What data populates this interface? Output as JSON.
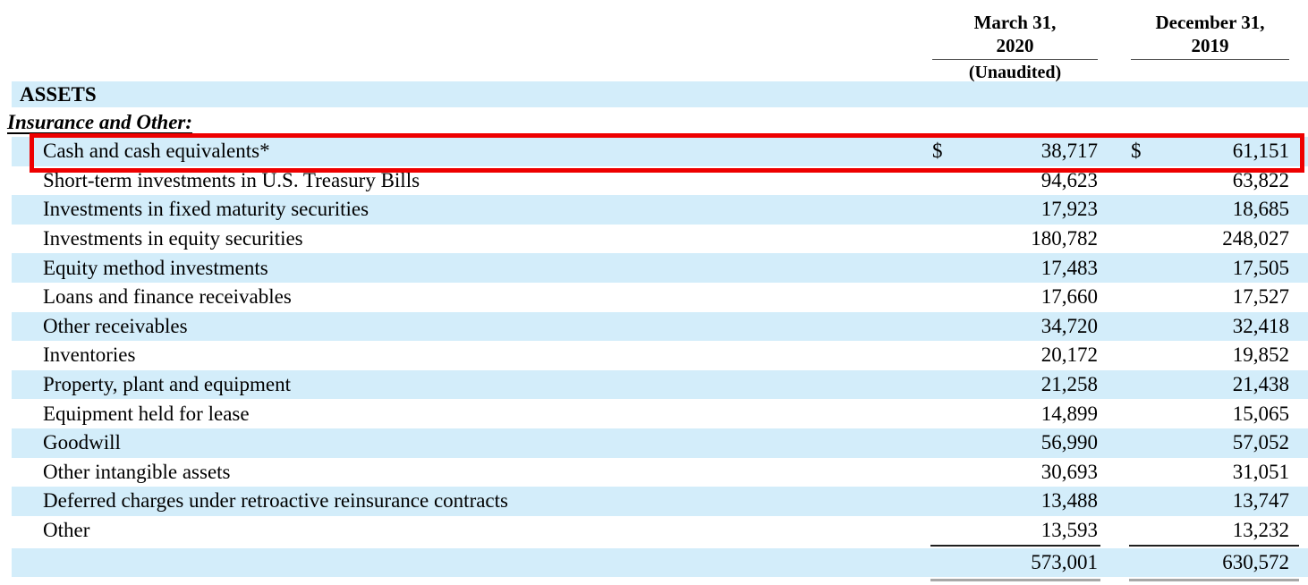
{
  "header": {
    "col1": {
      "line1": "March 31,",
      "line2": "2020",
      "note": "(Unaudited)"
    },
    "col2": {
      "line1": "December 31,",
      "line2": "2019",
      "note": ""
    }
  },
  "sections": {
    "assets": "ASSETS",
    "insurance_and_other": "Insurance and Other:"
  },
  "rows": [
    {
      "label": "Cash and cash equivalents*",
      "d1": "$",
      "v1": "38,717",
      "d2": "$",
      "v2": "61,151",
      "highlighted": true
    },
    {
      "label": "Short-term investments in U.S. Treasury Bills",
      "d1": "",
      "v1": "94,623",
      "d2": "",
      "v2": "63,822"
    },
    {
      "label": "Investments in fixed maturity securities",
      "d1": "",
      "v1": "17,923",
      "d2": "",
      "v2": "18,685"
    },
    {
      "label": "Investments in equity securities",
      "d1": "",
      "v1": "180,782",
      "d2": "",
      "v2": "248,027"
    },
    {
      "label": "Equity method investments",
      "d1": "",
      "v1": "17,483",
      "d2": "",
      "v2": "17,505"
    },
    {
      "label": "Loans and finance receivables",
      "d1": "",
      "v1": "17,660",
      "d2": "",
      "v2": "17,527"
    },
    {
      "label": "Other receivables",
      "d1": "",
      "v1": "34,720",
      "d2": "",
      "v2": "32,418"
    },
    {
      "label": "Inventories",
      "d1": "",
      "v1": "20,172",
      "d2": "",
      "v2": "19,852"
    },
    {
      "label": "Property, plant and equipment",
      "d1": "",
      "v1": "21,258",
      "d2": "",
      "v2": "21,438"
    },
    {
      "label": "Equipment held for lease",
      "d1": "",
      "v1": "14,899",
      "d2": "",
      "v2": "15,065"
    },
    {
      "label": "Goodwill",
      "d1": "",
      "v1": "56,990",
      "d2": "",
      "v2": "57,052"
    },
    {
      "label": "Other intangible assets",
      "d1": "",
      "v1": "30,693",
      "d2": "",
      "v2": "31,051"
    },
    {
      "label": "Deferred charges under retroactive reinsurance contracts",
      "d1": "",
      "v1": "13,488",
      "d2": "",
      "v2": "13,747"
    },
    {
      "label": "Other",
      "d1": "",
      "v1": "13,593",
      "d2": "",
      "v2": "13,232"
    }
  ],
  "total_row": {
    "v1": "573,001",
    "v2": "630,572"
  },
  "colors": {
    "row_band": "#d3edfa",
    "highlight_border": "#ee0000"
  }
}
